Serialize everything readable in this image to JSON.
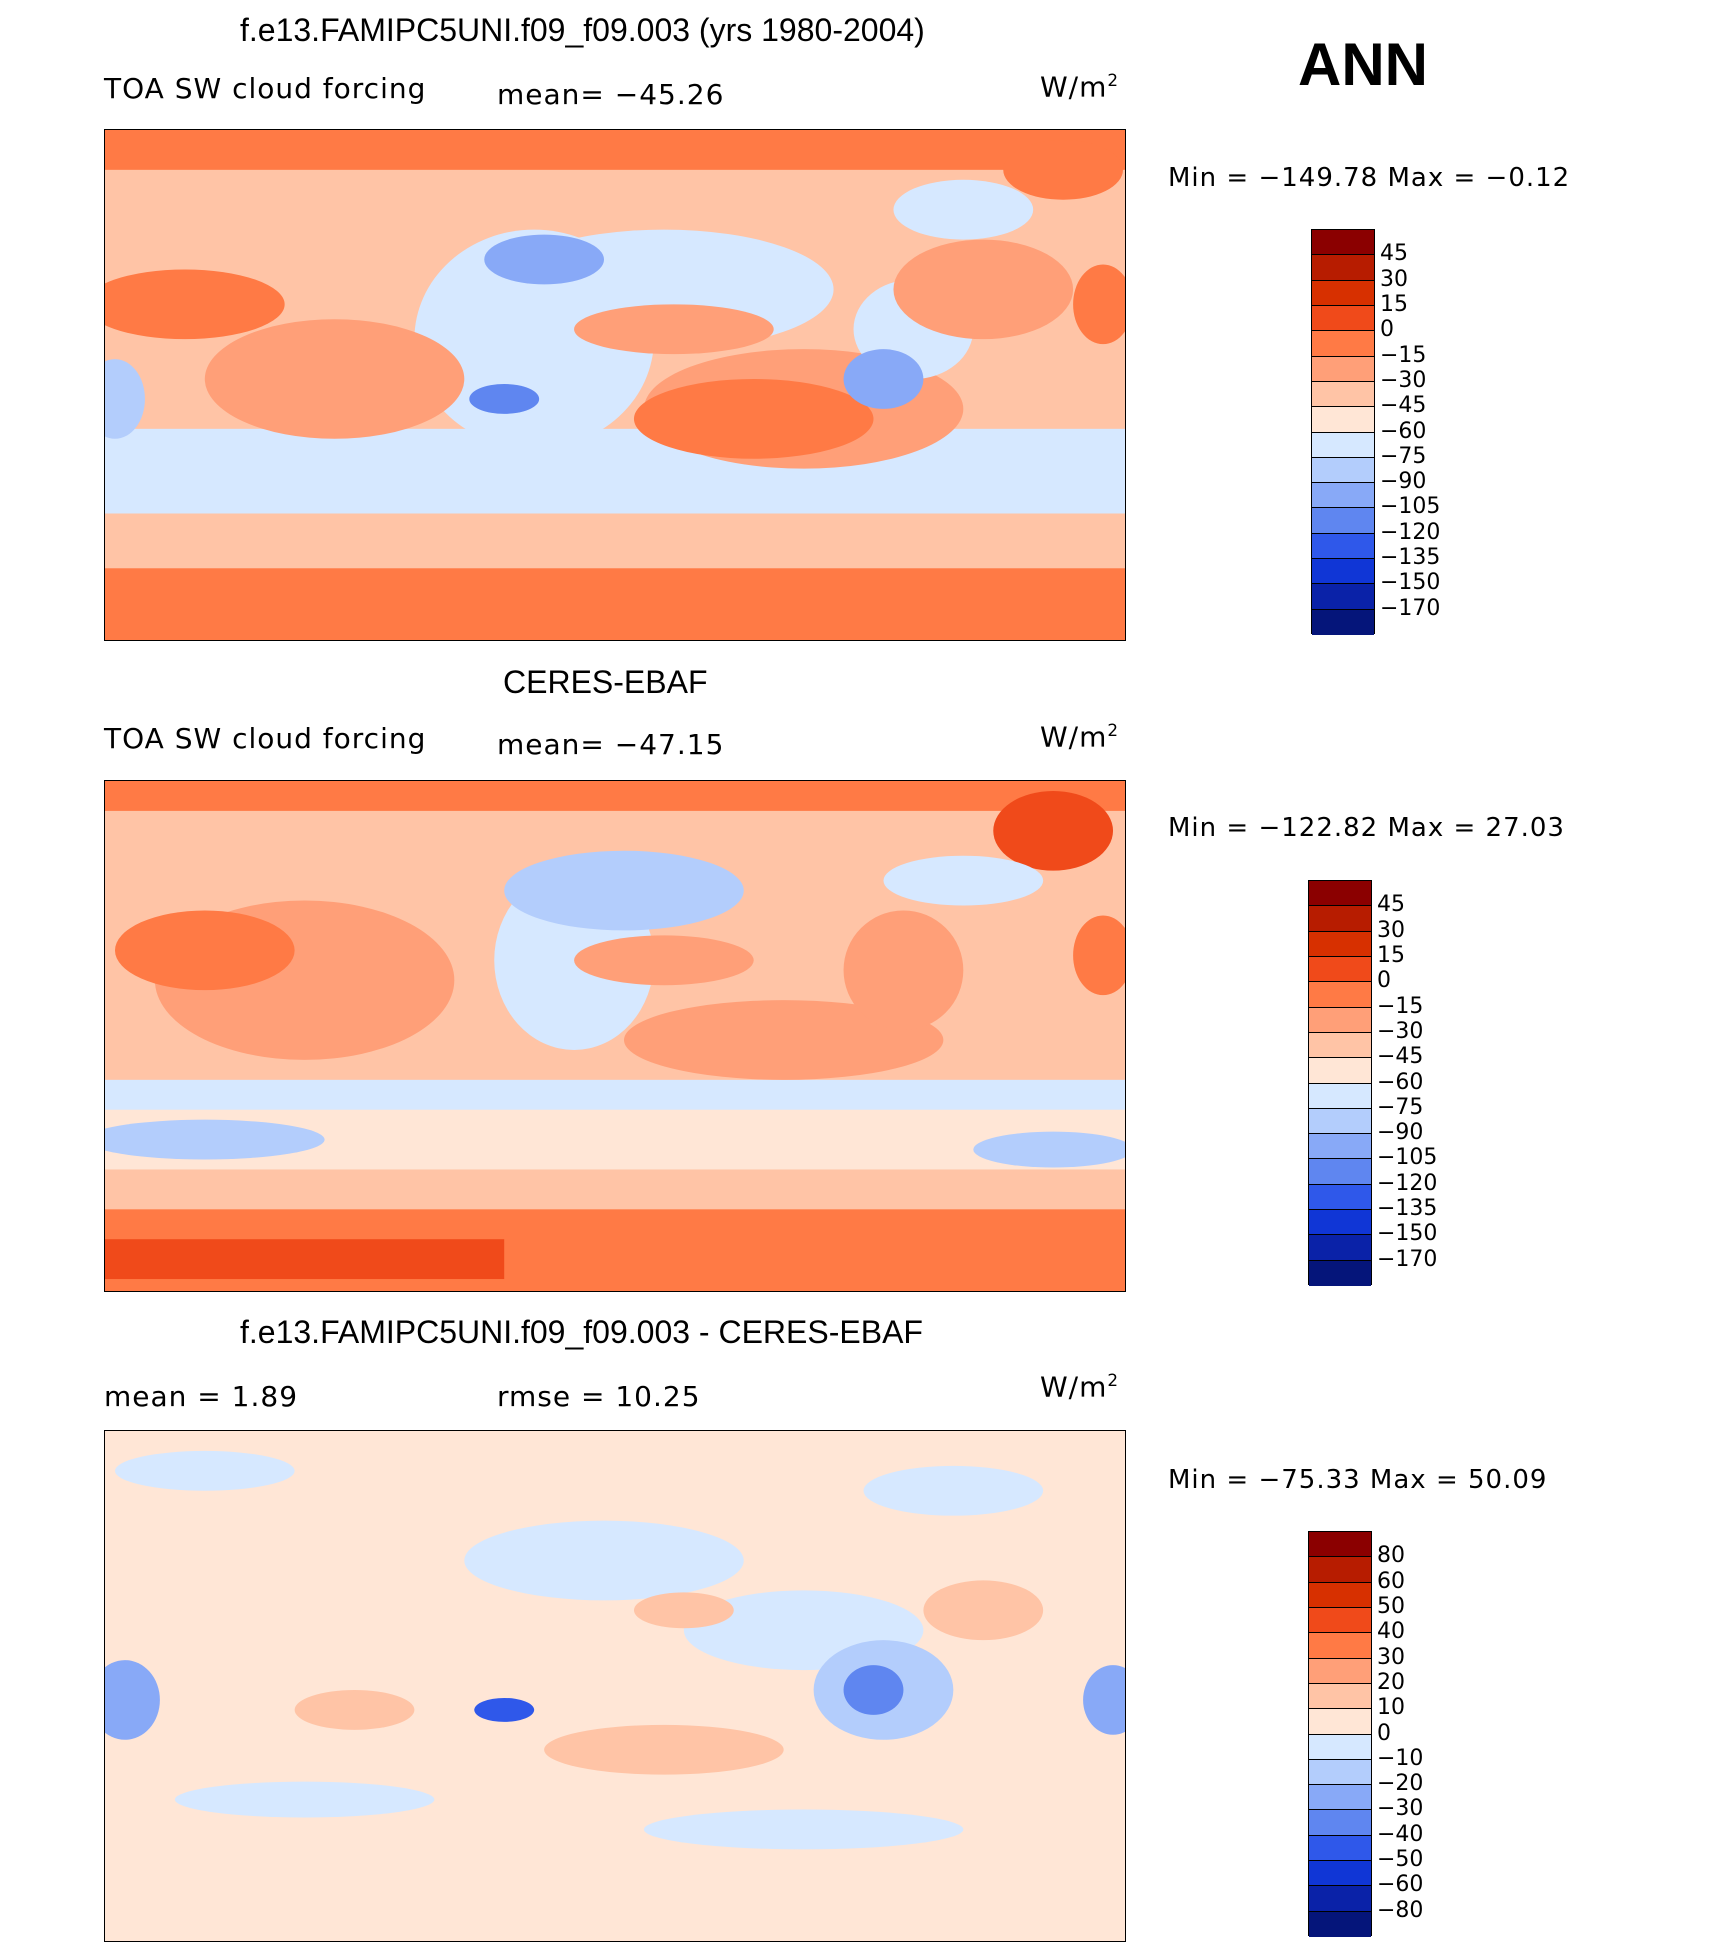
{
  "season": "ANN",
  "panels": [
    {
      "id": "model",
      "title": "f.e13.FAMIPC5UNI.f09_f09.003 (yrs 1980-2004)",
      "left_label": "TOA SW cloud forcing",
      "center_label": "mean= −45.26",
      "units": "W/m",
      "units_sup": "2",
      "min_max": "Min  =  −149.78  Max  =    −0.12",
      "colorbar": {
        "ticks": [
          "45",
          "30",
          "15",
          "0",
          "−15",
          "−30",
          "−45",
          "−60",
          "−75",
          "−90",
          "−105",
          "−120",
          "−135",
          "−150",
          "−170"
        ],
        "colors": [
          "#8b0000",
          "#b71c00",
          "#d73000",
          "#f04a1a",
          "#ff7a45",
          "#ff9f78",
          "#ffc4a6",
          "#ffe6d6",
          "#d6e8ff",
          "#b3cdfc",
          "#88a9f7",
          "#5f86f0",
          "#2f58ea",
          "#1036d6",
          "#0a22a8",
          "#05157a"
        ]
      }
    },
    {
      "id": "obs",
      "title": "CERES-EBAF",
      "left_label": "TOA SW cloud forcing",
      "center_label": "mean= −47.15",
      "units": "W/m",
      "units_sup": "2",
      "min_max": "Min  =  −122.82  Max  =    27.03",
      "colorbar": {
        "ticks": [
          "45",
          "30",
          "15",
          "0",
          "−15",
          "−30",
          "−45",
          "−60",
          "−75",
          "−90",
          "−105",
          "−120",
          "−135",
          "−150",
          "−170"
        ],
        "colors": [
          "#8b0000",
          "#b71c00",
          "#d73000",
          "#f04a1a",
          "#ff7a45",
          "#ff9f78",
          "#ffc4a6",
          "#ffe6d6",
          "#d6e8ff",
          "#b3cdfc",
          "#88a9f7",
          "#5f86f0",
          "#2f58ea",
          "#1036d6",
          "#0a22a8",
          "#05157a"
        ]
      }
    },
    {
      "id": "diff",
      "title": "f.e13.FAMIPC5UNI.f09_f09.003 - CERES-EBAF",
      "left_label": "mean  =     1.89",
      "center_label": "rmse  =    10.25",
      "units": "W/m",
      "units_sup": "2",
      "min_max": "Min  =  −75.33  Max  =    50.09",
      "colorbar": {
        "ticks": [
          "80",
          "60",
          "50",
          "40",
          "30",
          "20",
          "10",
          "0",
          "−10",
          "−20",
          "−30",
          "−40",
          "−50",
          "−60",
          "−80"
        ],
        "colors": [
          "#8b0000",
          "#b71c00",
          "#d73000",
          "#f04a1a",
          "#ff7a45",
          "#ff9f78",
          "#ffc4a6",
          "#ffe6d6",
          "#d6e8ff",
          "#b3cdfc",
          "#88a9f7",
          "#5f86f0",
          "#2f58ea",
          "#1036d6",
          "#0a22a8",
          "#05157a"
        ]
      }
    }
  ],
  "chart_data": {
    "type": "heatmap",
    "description_fields": {
      "variable": "TOA SW cloud forcing",
      "units": "W/m2",
      "season": "ANN"
    },
    "maps": [
      {
        "name": "f.e13.FAMIPC5UNI.f09_f09.003 (yrs 1980-2004)",
        "mean": -45.26,
        "min": -149.78,
        "max": -0.12,
        "levels": [
          -170,
          -150,
          -135,
          -120,
          -105,
          -90,
          -75,
          -60,
          -45,
          -30,
          -15,
          0,
          15,
          30,
          45
        ]
      },
      {
        "name": "CERES-EBAF",
        "mean": -47.15,
        "min": -122.82,
        "max": 27.03,
        "levels": [
          -170,
          -150,
          -135,
          -120,
          -105,
          -90,
          -75,
          -60,
          -45,
          -30,
          -15,
          0,
          15,
          30,
          45
        ]
      },
      {
        "name": "f.e13.FAMIPC5UNI.f09_f09.003 - CERES-EBAF",
        "mean": 1.89,
        "rmse": 10.25,
        "min": -75.33,
        "max": 50.09,
        "levels": [
          -80,
          -60,
          -50,
          -40,
          -30,
          -20,
          -10,
          0,
          10,
          20,
          30,
          40,
          50,
          60,
          80
        ]
      }
    ]
  }
}
